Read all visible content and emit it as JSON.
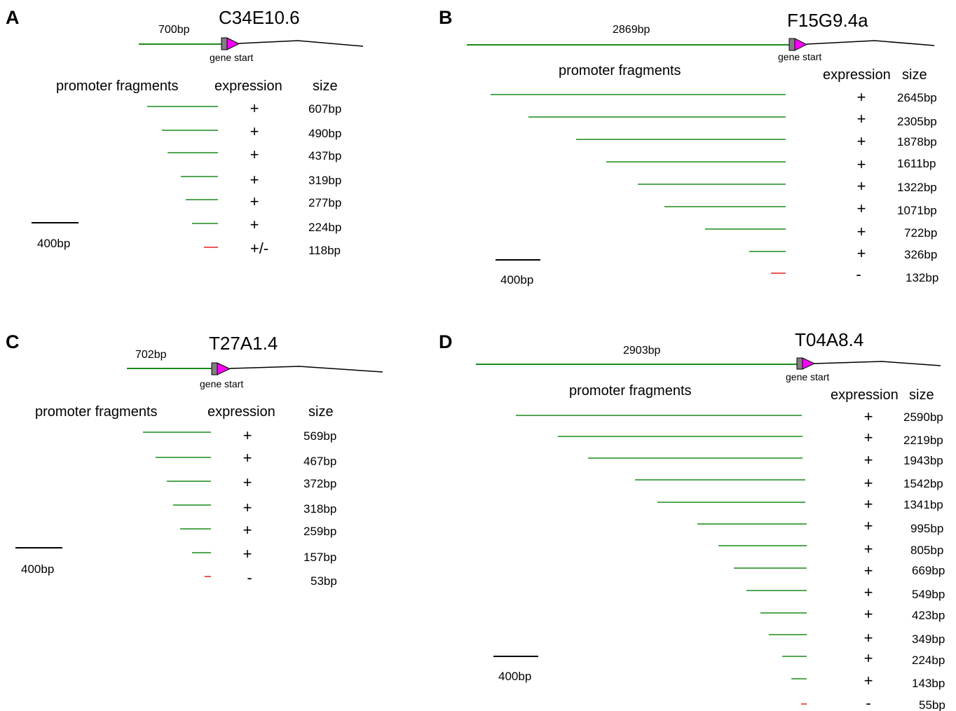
{
  "panels": [
    {
      "letter": "A",
      "gene": "C34E10.6",
      "promoter_length": "700bp",
      "gene_start_label": "gene start",
      "headers": {
        "fragments": "promoter fragments",
        "expression": "expression",
        "size": "size"
      },
      "scale_label": "400bp",
      "fragments": [
        {
          "size": "607bp",
          "expression": "+",
          "color": "#1a8a1a"
        },
        {
          "size": "490bp",
          "expression": "+",
          "color": "#1a8a1a"
        },
        {
          "size": "437bp",
          "expression": "+",
          "color": "#1a8a1a"
        },
        {
          "size": "319bp",
          "expression": "+",
          "color": "#1a8a1a"
        },
        {
          "size": "277bp",
          "expression": "+",
          "color": "#1a8a1a"
        },
        {
          "size": "224bp",
          "expression": "+",
          "color": "#1a8a1a"
        },
        {
          "size": "118bp",
          "expression": "+/-",
          "color": "#e02020"
        }
      ]
    },
    {
      "letter": "B",
      "gene": "F15G9.4a",
      "promoter_length": "2869bp",
      "gene_start_label": "gene start",
      "headers": {
        "fragments": "promoter fragments",
        "expression": "expression",
        "size": "size"
      },
      "scale_label": "400bp",
      "fragments": [
        {
          "size": "2645bp",
          "expression": "+",
          "color": "#1a8a1a"
        },
        {
          "size": "2305bp",
          "expression": "+",
          "color": "#1a8a1a"
        },
        {
          "size": "1878bp",
          "expression": "+",
          "color": "#1a8a1a"
        },
        {
          "size": "1611bp",
          "expression": "+",
          "color": "#1a8a1a"
        },
        {
          "size": "1322bp",
          "expression": "+",
          "color": "#1a8a1a"
        },
        {
          "size": "1071bp",
          "expression": "+",
          "color": "#1a8a1a"
        },
        {
          "size": "722bp",
          "expression": "+",
          "color": "#1a8a1a"
        },
        {
          "size": "326bp",
          "expression": "+",
          "color": "#1a8a1a"
        },
        {
          "size": "132bp",
          "expression": "-",
          "color": "#e02020"
        }
      ]
    },
    {
      "letter": "C",
      "gene": "T27A1.4",
      "promoter_length": "702bp",
      "gene_start_label": "gene start",
      "headers": {
        "fragments": "promoter fragments",
        "expression": "expression",
        "size": "size"
      },
      "scale_label": "400bp",
      "fragments": [
        {
          "size": "569bp",
          "expression": "+",
          "color": "#1a8a1a"
        },
        {
          "size": "467bp",
          "expression": "+",
          "color": "#1a8a1a"
        },
        {
          "size": "372bp",
          "expression": "+",
          "color": "#1a8a1a"
        },
        {
          "size": "318bp",
          "expression": "+",
          "color": "#1a8a1a"
        },
        {
          "size": "259bp",
          "expression": "+",
          "color": "#1a8a1a"
        },
        {
          "size": "157bp",
          "expression": "+",
          "color": "#1a8a1a"
        },
        {
          "size": "53bp",
          "expression": "-",
          "color": "#e02020"
        }
      ]
    },
    {
      "letter": "D",
      "gene": "T04A8.4",
      "promoter_length": "2903bp",
      "gene_start_label": "gene start",
      "headers": {
        "fragments": "promoter fragments",
        "expression": "expression",
        "size": "size"
      },
      "scale_label": "400bp",
      "fragments": [
        {
          "size": "2590bp",
          "expression": "+",
          "color": "#1a8a1a"
        },
        {
          "size": "2219bp",
          "expression": "+",
          "color": "#1a8a1a"
        },
        {
          "size": "1943bp",
          "expression": "+",
          "color": "#1a8a1a"
        },
        {
          "size": "1542bp",
          "expression": "+",
          "color": "#1a8a1a"
        },
        {
          "size": "1341bp",
          "expression": "+",
          "color": "#1a8a1a"
        },
        {
          "size": "995bp",
          "expression": "+",
          "color": "#1a8a1a"
        },
        {
          "size": "805bp",
          "expression": "+",
          "color": "#1a8a1a"
        },
        {
          "size": "669bp",
          "expression": "+",
          "color": "#1a8a1a"
        },
        {
          "size": "549bp",
          "expression": "+",
          "color": "#1a8a1a"
        },
        {
          "size": "423bp",
          "expression": "+",
          "color": "#1a8a1a"
        },
        {
          "size": "349bp",
          "expression": "+",
          "color": "#1a8a1a"
        },
        {
          "size": "224bp",
          "expression": "+",
          "color": "#1a8a1a"
        },
        {
          "size": "143bp",
          "expression": "+",
          "color": "#1a8a1a"
        },
        {
          "size": "55bp",
          "expression": "-",
          "color": "#e02020"
        }
      ]
    }
  ],
  "colors": {
    "promoter_line": "#1a8a1a",
    "exon_box": "#808080",
    "arrow": "#ff00ff",
    "gene_body": "#000000"
  }
}
